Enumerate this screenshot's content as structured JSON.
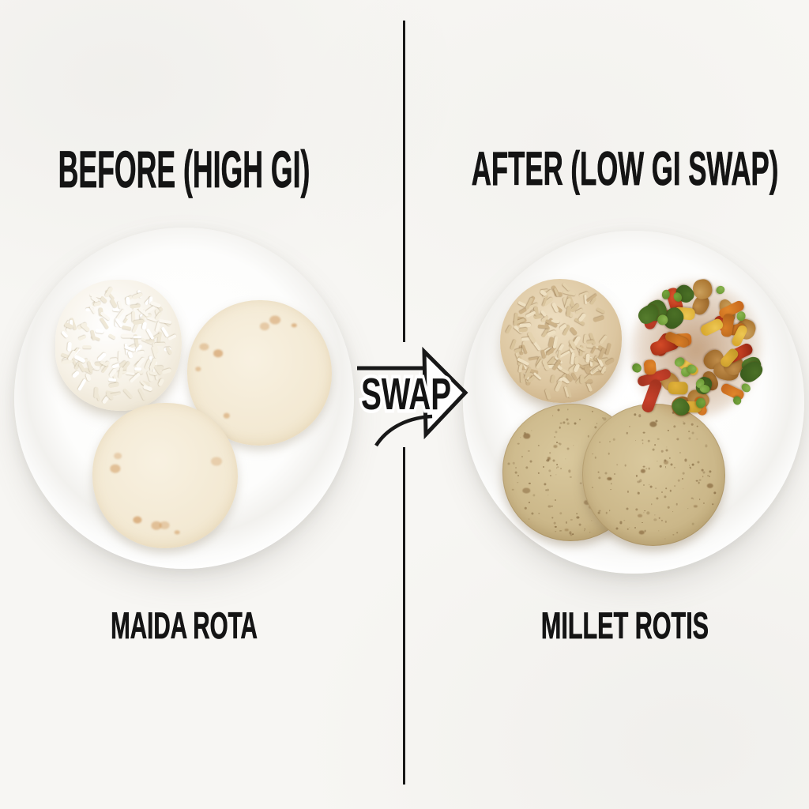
{
  "left": {
    "title": "BEFORE (HIGH GI)",
    "caption": "MAIDA ROTA",
    "plate_items": [
      "white-rice",
      "maida-roti",
      "maida-roti"
    ]
  },
  "right": {
    "title": "AFTER (LOW GI SWAP)",
    "caption": "MILLET ROTIS",
    "plate_items": [
      "brown-rice",
      "vegetable-stir-fry",
      "millet-roti",
      "millet-roti"
    ]
  },
  "center": {
    "swap_label": "SWAP"
  },
  "colors": {
    "background": "#f7f6f3",
    "ink": "#141414",
    "plate": "#fdfdfc",
    "white_rice": "#f5f0e4",
    "maida_roti": "#f3ead6",
    "brown_rice": "#dcc6a2",
    "millet_roti": "#cbb88c",
    "veg_red": "#c8402a",
    "veg_orange": "#d97e26",
    "veg_yellow": "#e3b23b",
    "veg_pea_green": "#76a43c",
    "veg_broccoli_green": "#4b7026",
    "veg_brown": "#a9742f"
  }
}
